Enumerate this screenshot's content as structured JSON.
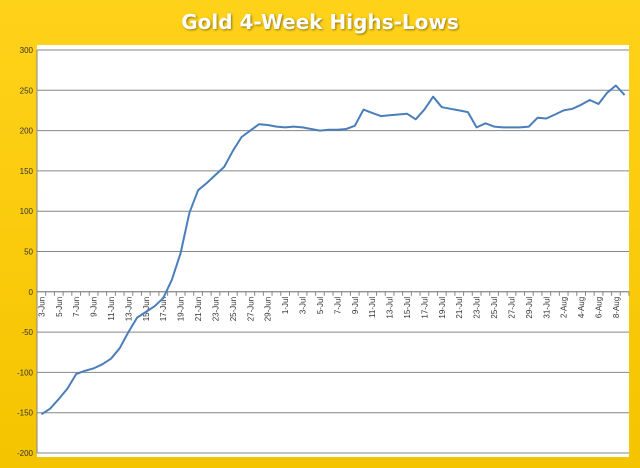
{
  "chart_data": {
    "type": "line",
    "title": "Gold 4-Week Highs-Lows",
    "xlabel": "",
    "ylabel": "",
    "ylim": [
      -200,
      300
    ],
    "yticks": [
      -200,
      -150,
      -100,
      -50,
      0,
      50,
      100,
      150,
      200,
      250,
      300
    ],
    "grid": true,
    "legend": "none",
    "line_color": "#4a7ebb",
    "x_tick_labels": [
      "3-Jun",
      "5-Jun",
      "7-Jun",
      "9-Jun",
      "11-Jun",
      "13-Jun",
      "15-Jun",
      "17-Jun",
      "19-Jun",
      "21-Jun",
      "23-Jun",
      "25-Jun",
      "27-Jun",
      "29-Jun",
      "1-Jul",
      "3-Jul",
      "5-Jul",
      "7-Jul",
      "9-Jul",
      "11-Jul",
      "13-Jul",
      "15-Jul",
      "17-Jul",
      "19-Jul",
      "21-Jul",
      "23-Jul",
      "25-Jul",
      "27-Jul",
      "29-Jul",
      "31-Jul",
      "2-Aug",
      "4-Aug",
      "6-Aug",
      "8-Aug"
    ],
    "x": [
      "3-Jun",
      "4-Jun",
      "5-Jun",
      "6-Jun",
      "7-Jun",
      "8-Jun",
      "9-Jun",
      "10-Jun",
      "11-Jun",
      "12-Jun",
      "13-Jun",
      "14-Jun",
      "15-Jun",
      "16-Jun",
      "17-Jun",
      "18-Jun",
      "19-Jun",
      "20-Jun",
      "21-Jun",
      "22-Jun",
      "23-Jun",
      "24-Jun",
      "25-Jun",
      "26-Jun",
      "27-Jun",
      "28-Jun",
      "29-Jun",
      "30-Jun",
      "1-Jul",
      "2-Jul",
      "3-Jul",
      "4-Jul",
      "5-Jul",
      "6-Jul",
      "7-Jul",
      "8-Jul",
      "9-Jul",
      "10-Jul",
      "11-Jul",
      "12-Jul",
      "13-Jul",
      "14-Jul",
      "15-Jul",
      "16-Jul",
      "17-Jul",
      "18-Jul",
      "19-Jul",
      "20-Jul",
      "21-Jul",
      "22-Jul",
      "23-Jul",
      "24-Jul",
      "25-Jul",
      "26-Jul",
      "27-Jul",
      "28-Jul",
      "29-Jul",
      "30-Jul",
      "31-Jul",
      "1-Aug",
      "2-Aug",
      "3-Aug",
      "4-Aug",
      "5-Aug",
      "6-Aug",
      "7-Aug",
      "8-Aug",
      "9-Aug"
    ],
    "values": [
      -152,
      -145,
      -133,
      -120,
      -102,
      -98,
      -95,
      -90,
      -83,
      -70,
      -50,
      -32,
      -25,
      -18,
      -8,
      15,
      48,
      98,
      126,
      135,
      145,
      155,
      175,
      192,
      200,
      208,
      207,
      205,
      204,
      205,
      204,
      202,
      200,
      201,
      201,
      202,
      206,
      226,
      222,
      218,
      219,
      220,
      221,
      214,
      226,
      242,
      229,
      227,
      225,
      223,
      204,
      209,
      205,
      204,
      204,
      204,
      205,
      216,
      215,
      220,
      225,
      227,
      232,
      238,
      233,
      247,
      256,
      244
    ]
  }
}
